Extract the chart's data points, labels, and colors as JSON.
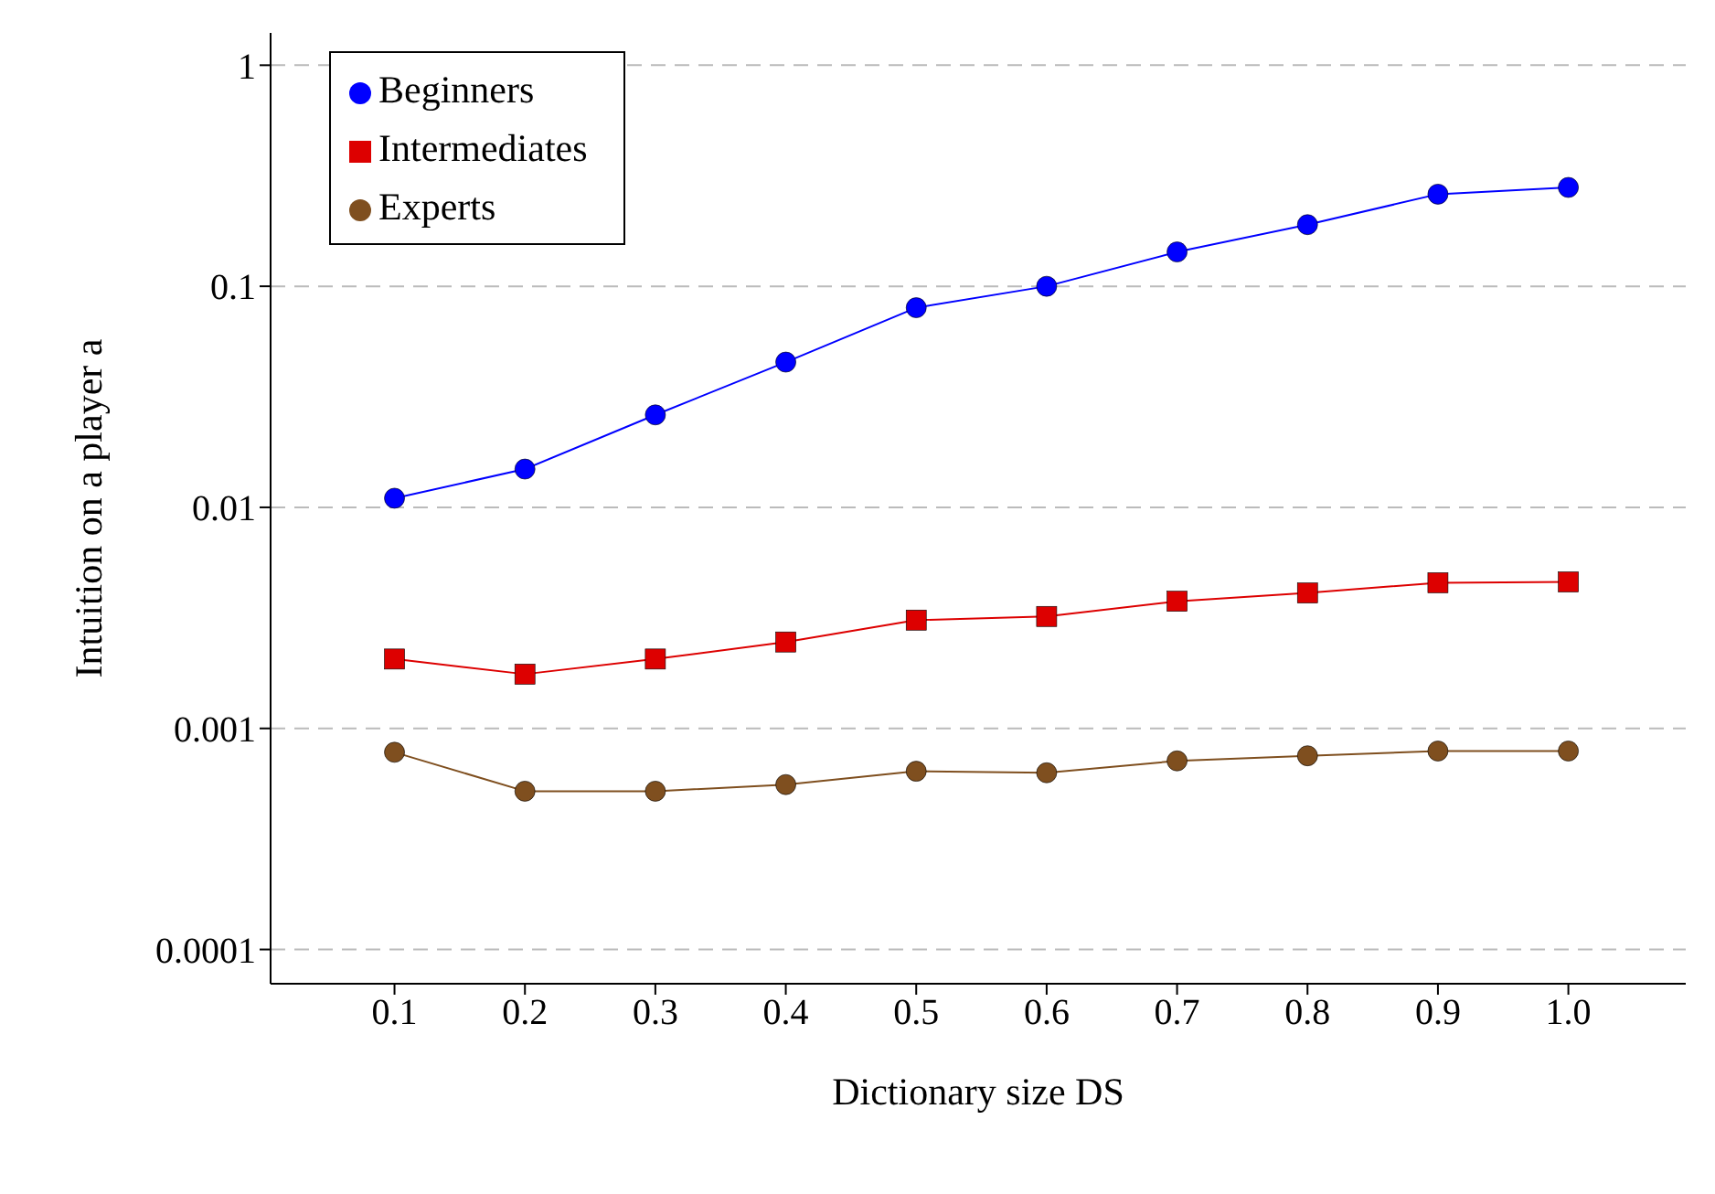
{
  "chart_data": {
    "type": "line",
    "xlabel": "Dictionary size DS",
    "ylabel": "Intuition on a player a",
    "x": [
      0.1,
      0.2,
      0.3,
      0.4,
      0.5,
      0.6,
      0.7,
      0.8,
      0.9,
      1.0
    ],
    "log": "y",
    "xlim": [
      0.005,
      1.09
    ],
    "ylim": [
      7e-05,
      1.4
    ],
    "xticks": [
      0.1,
      0.2,
      0.3,
      0.4,
      0.5,
      0.6,
      0.7,
      0.8,
      0.9,
      {
        "value": 1,
        "label": "1.0"
      }
    ],
    "yticks": [
      0.0001,
      0.001,
      0.01,
      0.1,
      1
    ],
    "grid": "y",
    "legend": "top left",
    "series": [
      {
        "name": "Beginners",
        "color": "#0000ff",
        "marker": "circle",
        "values": [
          0.011,
          0.0149,
          0.0262,
          0.0454,
          0.08,
          0.1,
          0.143,
          0.19,
          0.261,
          0.28
        ]
      },
      {
        "name": "Intermediates",
        "color": "#dd0000",
        "marker": "square",
        "values": [
          0.00206,
          0.00176,
          0.00206,
          0.00246,
          0.00309,
          0.00321,
          0.00376,
          0.0041,
          0.00456,
          0.0046
        ]
      },
      {
        "name": "Experts",
        "color": "#7f4f1f",
        "marker": "circle",
        "values": [
          0.00078,
          0.00052,
          0.00052,
          0.000557,
          0.00064,
          0.00063,
          0.000713,
          0.000752,
          0.00079,
          0.00079
        ]
      }
    ]
  }
}
